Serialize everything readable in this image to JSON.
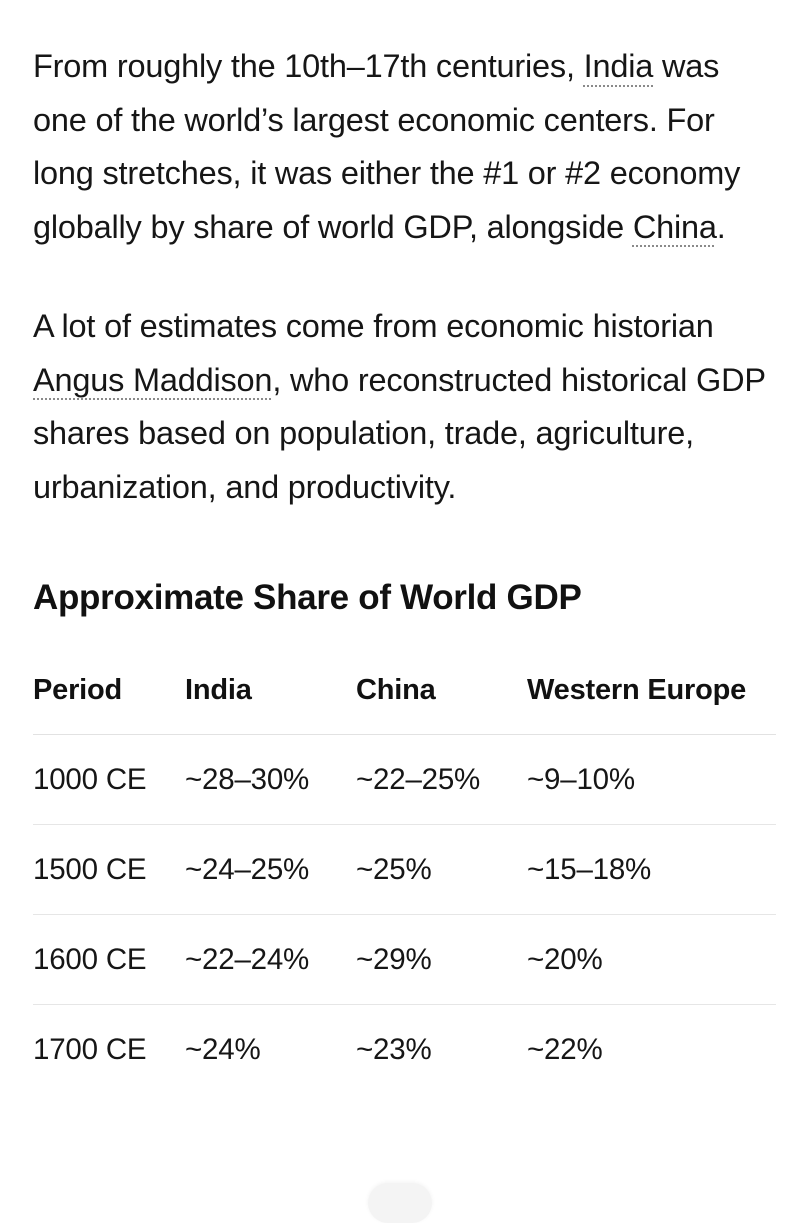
{
  "paragraph1": {
    "t1": "From roughly the 10th–17th centuries, ",
    "link_india": "India",
    "t2": " was one of the world’s largest economic centers. For long stretches, it was either the #1 or #2 economy globally by share of world GDP, alongside ",
    "link_china": "China",
    "t3": "."
  },
  "paragraph2": {
    "t1": "A lot of estimates come from economic historian ",
    "link_maddison": "Angus Maddison",
    "t2": ", who reconstructed historical GDP shares based on population, trade, agriculture, urbanization, and productivity."
  },
  "section_title": "Approximate Share of World GDP",
  "table": {
    "headers": [
      "Period",
      "India",
      "China",
      "Western Europe"
    ],
    "rows": [
      [
        "1000 CE",
        "~28–30%",
        "~22–25%",
        "~9–10%"
      ],
      [
        "1500 CE",
        "~24–25%",
        "~25%",
        "~15–18%"
      ],
      [
        "1600 CE",
        "~22–24%",
        "~29%",
        "~20%"
      ],
      [
        "1700 CE",
        "~24%",
        "~23%",
        "~22%"
      ]
    ]
  }
}
